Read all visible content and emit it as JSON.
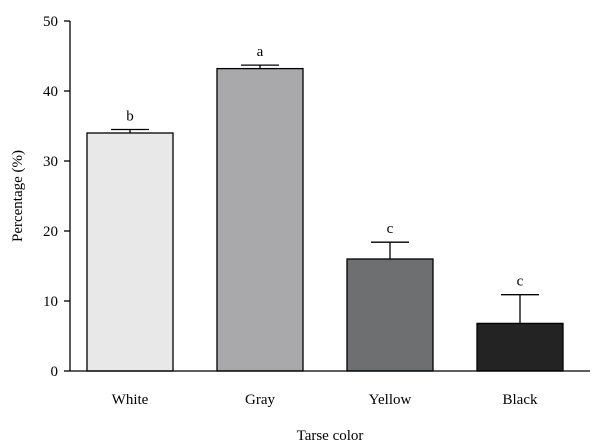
{
  "chart_data": {
    "type": "bar",
    "categories": [
      "White",
      "Gray",
      "Yellow",
      "Black"
    ],
    "values": [
      34,
      43.2,
      16,
      6.8
    ],
    "errors": [
      0.5,
      0.5,
      2.4,
      4.1
    ],
    "significance": [
      "b",
      "a",
      "c",
      "c"
    ],
    "colors": [
      "#e8e8e8",
      "#a9a9ab",
      "#6e6f71",
      "#232323"
    ],
    "xlabel": "Tarse color",
    "ylabel": "Percentage (%)",
    "ylim": [
      0,
      50
    ],
    "yticks": [
      "0",
      "10",
      "20",
      "30",
      "40",
      "50"
    ],
    "grid": false
  }
}
